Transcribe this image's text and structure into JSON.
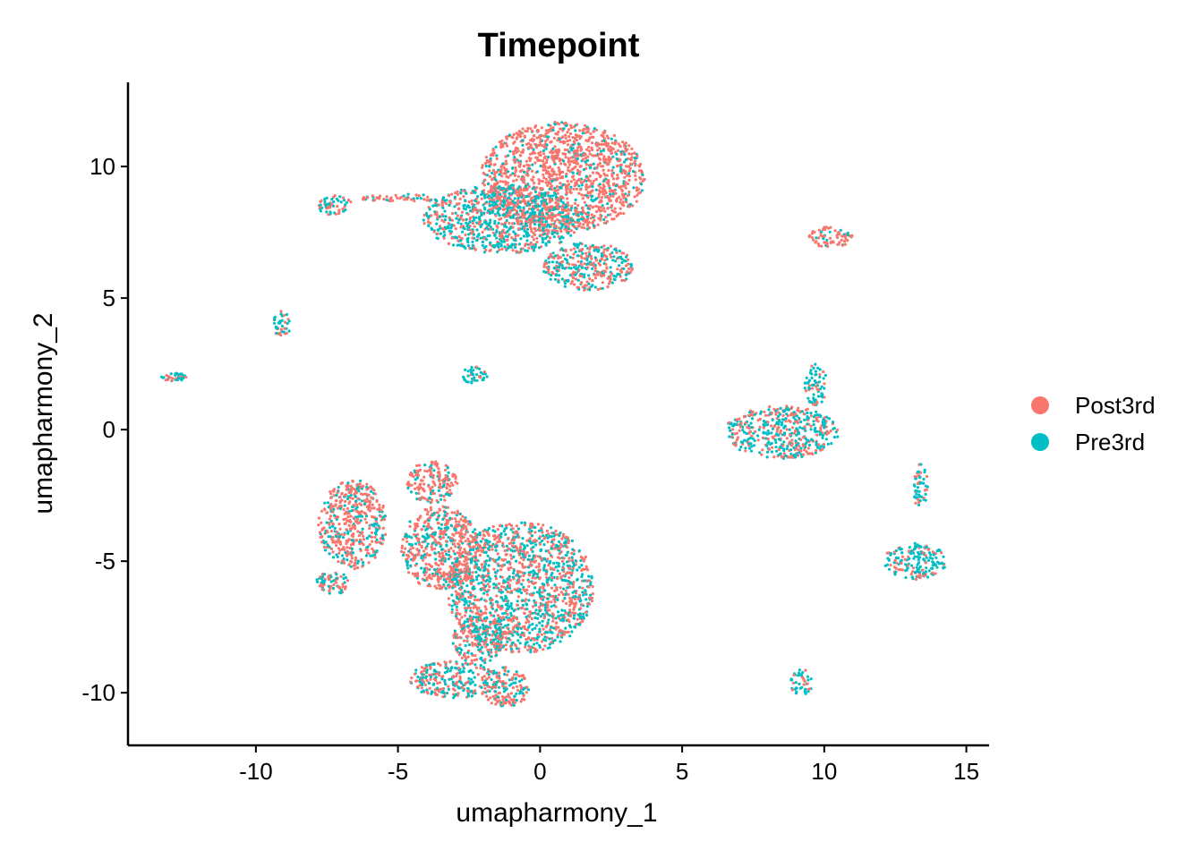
{
  "chart_data": {
    "type": "scatter",
    "title": "Timepoint",
    "xlabel": "umapharmony_1",
    "ylabel": "umapharmony_2",
    "xlim": [
      -14.5,
      15.8
    ],
    "ylim": [
      -12,
      13.2
    ],
    "xticks": [
      -10,
      -5,
      0,
      5,
      10,
      15
    ],
    "yticks": [
      -10,
      -5,
      0,
      5,
      10
    ],
    "grid": false,
    "legend_position": "right",
    "series": [
      {
        "name": "Post3rd",
        "color": "#F8766D"
      },
      {
        "name": "Pre3rd",
        "color": "#00BFC4"
      }
    ],
    "clusters": [
      {
        "cx": 0.8,
        "cy": 9.6,
        "rx": 2.9,
        "ry": 2.1,
        "post_frac": 0.8
      },
      {
        "cx": -1.3,
        "cy": 8.0,
        "rx": 2.8,
        "ry": 1.3,
        "post_frac": 0.45
      },
      {
        "cx": 1.7,
        "cy": 6.2,
        "rx": 1.6,
        "ry": 0.9,
        "post_frac": 0.5
      },
      {
        "cx": -7.2,
        "cy": 8.5,
        "rx": 0.6,
        "ry": 0.4,
        "post_frac": 0.55
      },
      {
        "cx": -5.0,
        "cy": 8.8,
        "rx": 1.5,
        "ry": 0.15,
        "post_frac": 0.7
      },
      {
        "cx": -9.1,
        "cy": 4.0,
        "rx": 0.35,
        "ry": 0.5,
        "post_frac": 0.35
      },
      {
        "cx": -12.9,
        "cy": 2.0,
        "rx": 0.45,
        "ry": 0.15,
        "post_frac": 0.35
      },
      {
        "cx": -2.3,
        "cy": 2.1,
        "rx": 0.5,
        "ry": 0.35,
        "post_frac": 0.3
      },
      {
        "cx": 10.2,
        "cy": 7.3,
        "rx": 0.8,
        "ry": 0.4,
        "post_frac": 0.8
      },
      {
        "cx": 8.5,
        "cy": -0.1,
        "rx": 2.0,
        "ry": 1.0,
        "post_frac": 0.45
      },
      {
        "cx": 9.7,
        "cy": 1.7,
        "rx": 0.4,
        "ry": 0.8,
        "post_frac": 0.4
      },
      {
        "cx": 13.2,
        "cy": -5.0,
        "rx": 1.1,
        "ry": 0.7,
        "post_frac": 0.3
      },
      {
        "cx": 13.4,
        "cy": -2.2,
        "rx": 0.25,
        "ry": 0.9,
        "post_frac": 0.3
      },
      {
        "cx": 9.2,
        "cy": -9.6,
        "rx": 0.4,
        "ry": 0.5,
        "post_frac": 0.3
      },
      {
        "cx": -0.7,
        "cy": -6.0,
        "rx": 2.6,
        "ry": 2.5,
        "post_frac": 0.5
      },
      {
        "cx": -3.5,
        "cy": -4.5,
        "rx": 1.4,
        "ry": 1.6,
        "post_frac": 0.7
      },
      {
        "cx": -6.6,
        "cy": -3.6,
        "rx": 1.2,
        "ry": 1.7,
        "post_frac": 0.7
      },
      {
        "cx": -7.3,
        "cy": -5.8,
        "rx": 0.6,
        "ry": 0.5,
        "post_frac": 0.55
      },
      {
        "cx": -3.8,
        "cy": -2.0,
        "rx": 0.9,
        "ry": 0.8,
        "post_frac": 0.75
      },
      {
        "cx": -3.0,
        "cy": -9.5,
        "rx": 1.6,
        "ry": 0.7,
        "post_frac": 0.45
      },
      {
        "cx": -1.2,
        "cy": -9.8,
        "rx": 0.8,
        "ry": 0.8,
        "post_frac": 0.55
      },
      {
        "cx": -2.2,
        "cy": -8.0,
        "rx": 0.9,
        "ry": 0.9,
        "post_frac": 0.5
      }
    ]
  }
}
